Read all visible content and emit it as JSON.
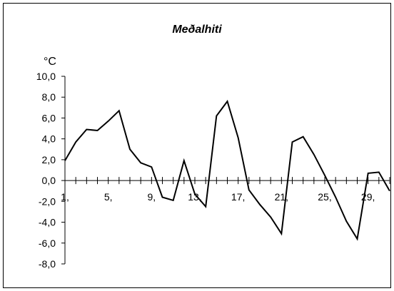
{
  "chart_data": {
    "type": "line",
    "title": "Meðalhiti",
    "xlabel": "",
    "ylabel": "°C",
    "ylim": [
      -8,
      10
    ],
    "yticks": [
      {
        "value": 10,
        "label": "10,0"
      },
      {
        "value": 8,
        "label": "8,0"
      },
      {
        "value": 6,
        "label": "6,0"
      },
      {
        "value": 4,
        "label": "4,0"
      },
      {
        "value": 2,
        "label": "2,0"
      },
      {
        "value": 0,
        "label": "0,0"
      },
      {
        "value": -2,
        "label": "-2,0"
      },
      {
        "value": -4,
        "label": "-4,0"
      },
      {
        "value": -6,
        "label": "-6,0"
      },
      {
        "value": -8,
        "label": "-8,0"
      }
    ],
    "xlim": [
      1,
      31
    ],
    "xticklabels": [
      {
        "x": 1,
        "label": "1,"
      },
      {
        "x": 5,
        "label": "5,"
      },
      {
        "x": 9,
        "label": "9,"
      },
      {
        "x": 13,
        "label": "13,"
      },
      {
        "x": 17,
        "label": "17,"
      },
      {
        "x": 21,
        "label": "21,"
      },
      {
        "x": 25,
        "label": "25,"
      },
      {
        "x": 29,
        "label": "29,"
      }
    ],
    "grid": false,
    "legend": "none",
    "color": "#000000",
    "series": [
      {
        "x": [
          1,
          2,
          3,
          4,
          5,
          6,
          7,
          8,
          9,
          10,
          11,
          12,
          13,
          14,
          15,
          16,
          17,
          18,
          19,
          20,
          21,
          22,
          23,
          24,
          25,
          26,
          27,
          28,
          29,
          30,
          31
        ],
        "values": [
          1.9,
          3.7,
          4.9,
          4.8,
          5.7,
          6.7,
          3.0,
          1.7,
          1.3,
          -1.6,
          -1.9,
          1.9,
          -1.3,
          -2.5,
          6.2,
          7.6,
          4.1,
          -0.9,
          -2.3,
          -3.5,
          -5.1,
          3.7,
          4.2,
          2.5,
          0.5,
          -1.6,
          -3.9,
          -5.6,
          0.7,
          0.8,
          -1.0
        ]
      }
    ]
  }
}
